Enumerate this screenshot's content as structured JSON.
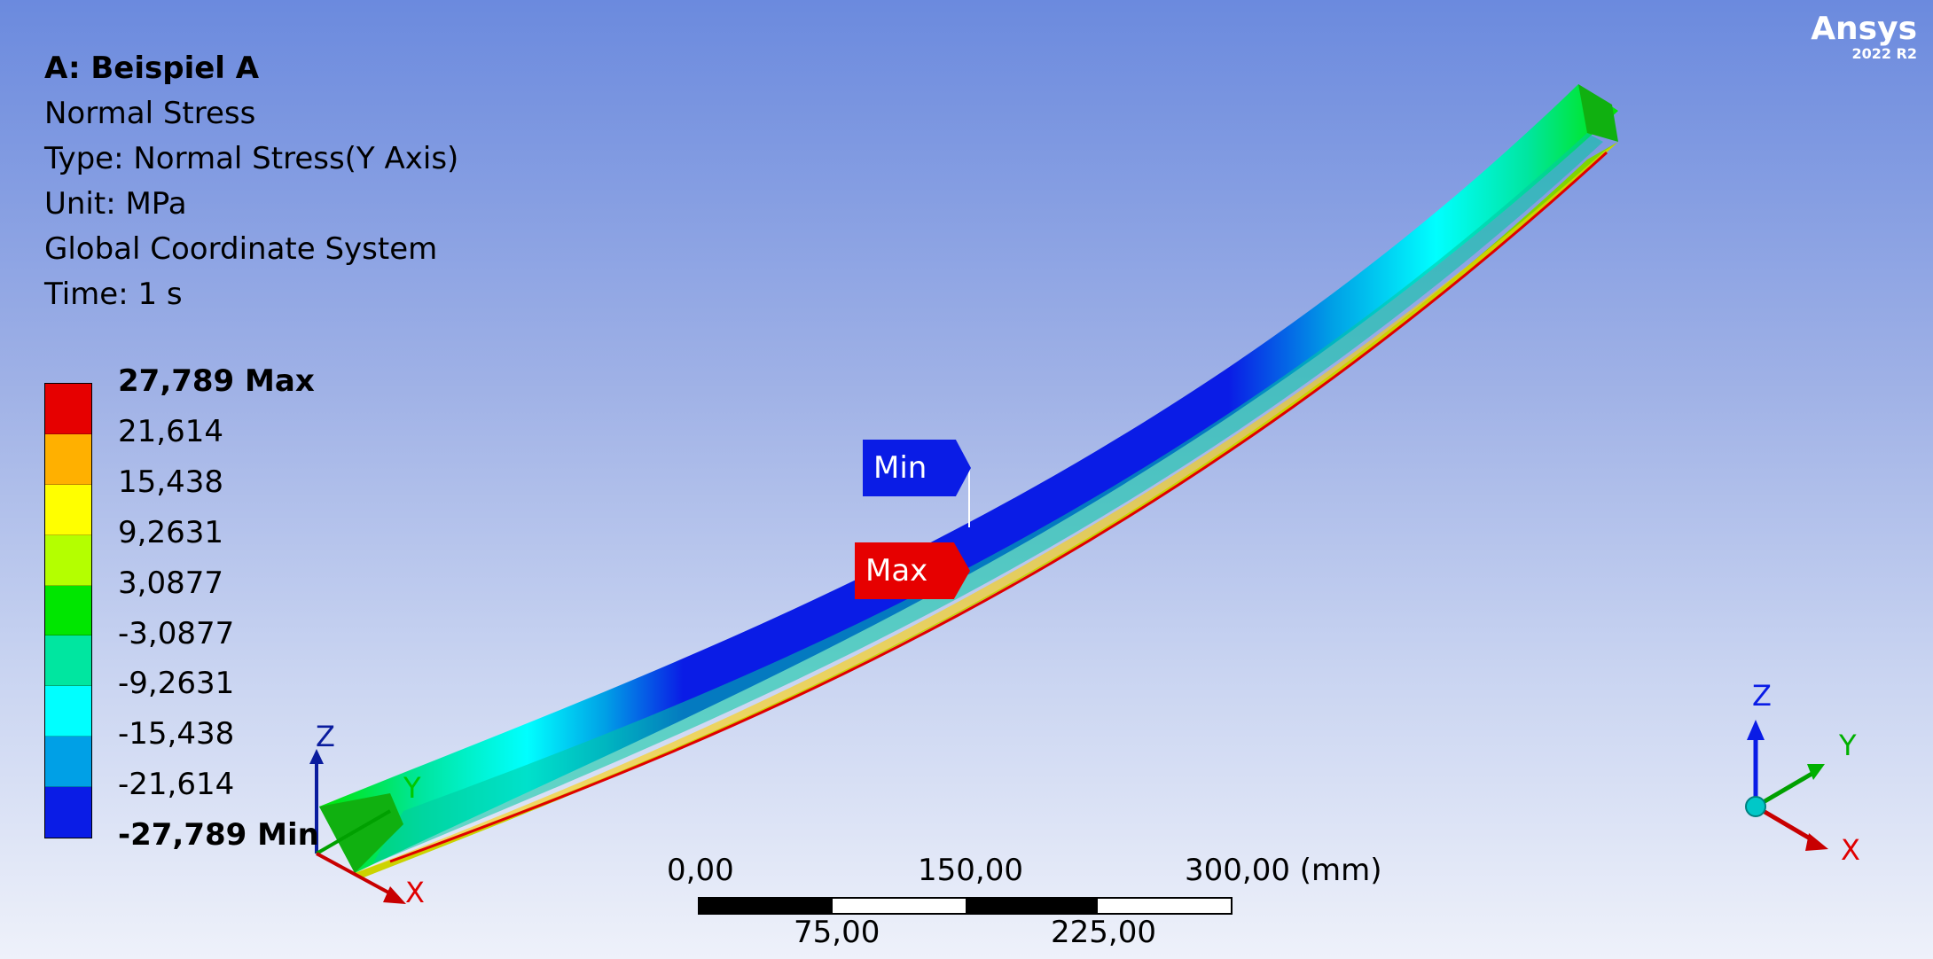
{
  "brand": {
    "name": "Ansys",
    "version": "2022 R2"
  },
  "info": {
    "title": "A: Beispiel A",
    "result": "Normal Stress",
    "type": "Type: Normal Stress(Y Axis)",
    "unit": "Unit: MPa",
    "coord": "Global Coordinate System",
    "time": "Time: 1 s"
  },
  "legend": {
    "labels": [
      "27,789 Max",
      "21,614",
      "15,438",
      "9,2631",
      "3,0877",
      "-3,0877",
      "-9,2631",
      "-15,438",
      "-21,614",
      "-27,789 Min"
    ],
    "colors": [
      "#e60000",
      "#ffb000",
      "#ffff00",
      "#b4ff00",
      "#00e600",
      "#00e6a0",
      "#00ffff",
      "#00a0e6",
      "#0a1ce6"
    ]
  },
  "probes": {
    "min_label": "Min",
    "max_label": "Max"
  },
  "scale_bar": {
    "top_labels": [
      "0,00",
      "150,00",
      "300,00 (mm)"
    ],
    "bottom_labels": [
      "75,00",
      "225,00"
    ]
  },
  "triad": {
    "x": "X",
    "y": "Y",
    "z": "Z"
  }
}
